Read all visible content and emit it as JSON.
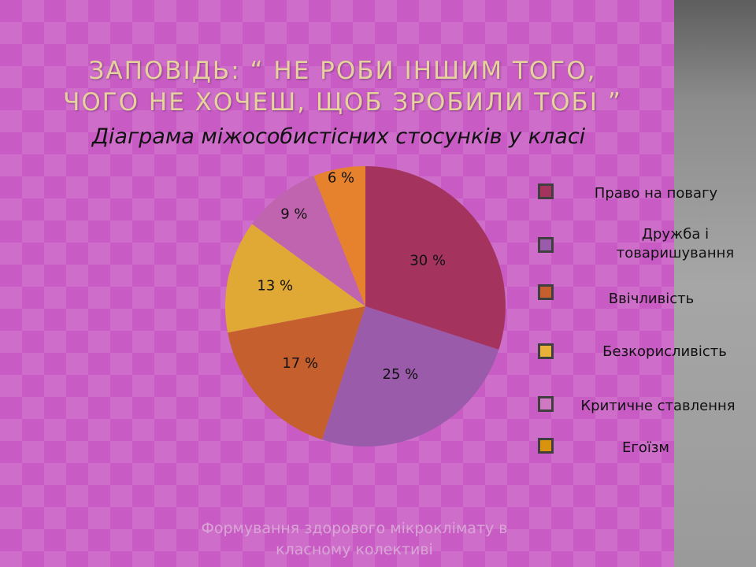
{
  "slide": {
    "title_line1": "ЗАПОВІДЬ: “ НЕ РОБИ ІНШИМ ТОГО,",
    "title_line2": "ЧОГО НЕ ХОЧЕШ, ЩОБ ЗРОБИЛИ ТОБІ ”",
    "subtitle": "Діаграма міжособистісних стосунків у класі",
    "footer_line1": "Формування здорового мікроклімату в",
    "footer_line2": "класному колективі"
  },
  "chart_data": {
    "type": "pie",
    "title": "Діаграма міжособистісних стосунків у класі",
    "start": "12 o'clock, clockwise",
    "legend_position": "right",
    "slices": [
      {
        "name": "Право на повагу",
        "value": 30,
        "label": "30 %",
        "color": "#a4345e"
      },
      {
        "name": "Дружба і товаришування",
        "value": 25,
        "label": "25 %",
        "color": "#9a5bab"
      },
      {
        "name": "Ввічливість",
        "value": 17,
        "label": "17 %",
        "color": "#c65f2e"
      },
      {
        "name": "Безкорисливість",
        "value": 13,
        "label": "13 %",
        "color": "#e0a935"
      },
      {
        "name": "Критичне ставлення",
        "value": 9,
        "label": "9 %",
        "color": "#c064b0"
      },
      {
        "name": "Егоїзм",
        "value": 6,
        "label": "6 %",
        "color": "#e6822e"
      }
    ],
    "legend": [
      {
        "label": "Право на повагу",
        "color": "#a4345e"
      },
      {
        "label": "Дружба і\nтоваришування",
        "color": "#9a5bab"
      },
      {
        "label": "Ввічливість",
        "color": "#c65f2e"
      },
      {
        "label": "Безкорисливість",
        "color": "#e8b23a"
      },
      {
        "label": "Критичне ставлення",
        "color": "#cf79c2"
      },
      {
        "label": "Егоїзм",
        "color": "#d9930f"
      }
    ]
  }
}
